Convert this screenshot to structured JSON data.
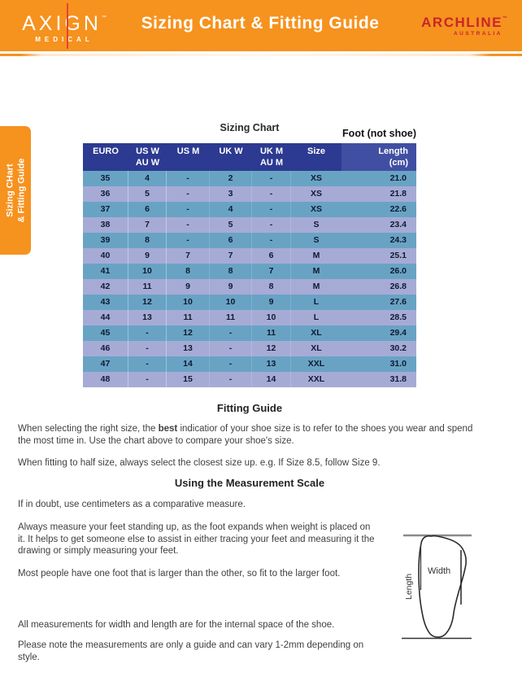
{
  "header": {
    "title": "Sizing Chart & Fitting Guide",
    "axign": {
      "name": "AXIGN",
      "tm": "™",
      "sub": "MEDICAL"
    },
    "archline": {
      "name": "ARCHLINE",
      "tm": "™",
      "sub": "AUSTRALIA"
    }
  },
  "side_tab": {
    "line1": "Sizing CHart",
    "line2": "& Fitting Guide"
  },
  "sizing_chart": {
    "title": "Sizing Chart",
    "foot_note": "Foot (not shoe)",
    "columns": [
      {
        "line1": "EURO",
        "line2": ""
      },
      {
        "line1": "US W",
        "line2": "AU W"
      },
      {
        "line1": "US M",
        "line2": ""
      },
      {
        "line1": "UK W",
        "line2": ""
      },
      {
        "line1": "UK M",
        "line2": "AU M"
      },
      {
        "line1": "Size",
        "line2": ""
      },
      {
        "line1": "Length",
        "line2": "(cm)"
      }
    ],
    "rows": [
      [
        "35",
        "4",
        "-",
        "2",
        "-",
        "XS",
        "21.0"
      ],
      [
        "36",
        "5",
        "-",
        "3",
        "-",
        "XS",
        "21.8"
      ],
      [
        "37",
        "6",
        "-",
        "4",
        "-",
        "XS",
        "22.6"
      ],
      [
        "38",
        "7",
        "-",
        "5",
        "-",
        "S",
        "23.4"
      ],
      [
        "39",
        "8",
        "-",
        "6",
        "-",
        "S",
        "24.3"
      ],
      [
        "40",
        "9",
        "7",
        "7",
        "6",
        "M",
        "25.1"
      ],
      [
        "41",
        "10",
        "8",
        "8",
        "7",
        "M",
        "26.0"
      ],
      [
        "42",
        "11",
        "9",
        "9",
        "8",
        "M",
        "26.8"
      ],
      [
        "43",
        "12",
        "10",
        "10",
        "9",
        "L",
        "27.6"
      ],
      [
        "44",
        "13",
        "11",
        "11",
        "10",
        "L",
        "28.5"
      ],
      [
        "45",
        "-",
        "12",
        "-",
        "11",
        "XL",
        "29.4"
      ],
      [
        "46",
        "-",
        "13",
        "-",
        "12",
        "XL",
        "30.2"
      ],
      [
        "47",
        "-",
        "14",
        "-",
        "13",
        "XXL",
        "31.0"
      ],
      [
        "48",
        "-",
        "15",
        "-",
        "14",
        "XXL",
        "31.8"
      ]
    ]
  },
  "fitting_guide": {
    "title": "Fitting Guide",
    "para1": {
      "before": "When selecting the right size, the ",
      "bold": "best",
      "after": " indicatior of your shoe size is to refer to the shoes you wear and spend the most time in. Use the chart above to compare your shoe's size."
    },
    "para2": "When fitting to half size, always select the closest size up. e.g. If Size 8.5, follow Size 9."
  },
  "measurement": {
    "title": "Using the Measurement Scale",
    "para_doubt": "If in doubt, use centimeters as a comparative measure.",
    "para_always": "Always measure your feet standing up, as the foot expands when weight is placed on it. It helps to get someone else to assist in either tracing your feet and measuring it the drawing or simply measuring your feet.",
    "para_most": "Most people have one foot that is larger than the other, so fit to the larger foot.",
    "para_all": "All measurements for width and length are for the internal space of the shoe.",
    "para_note": "Please note the measurements are only a guide and can vary 1-2mm depending on style.",
    "diagram": {
      "width_label": "Width",
      "length_label": "Length"
    }
  },
  "colors": {
    "brand_orange": "#F6921E",
    "axign_line_red": "#E8432E",
    "archline_red": "#C9252C",
    "table_header_navy": "#2C3A91",
    "table_header_length_blue": "#414FA3",
    "row_steel_blue": "#69A3C4",
    "row_periwinkle": "#A6ABD6"
  }
}
